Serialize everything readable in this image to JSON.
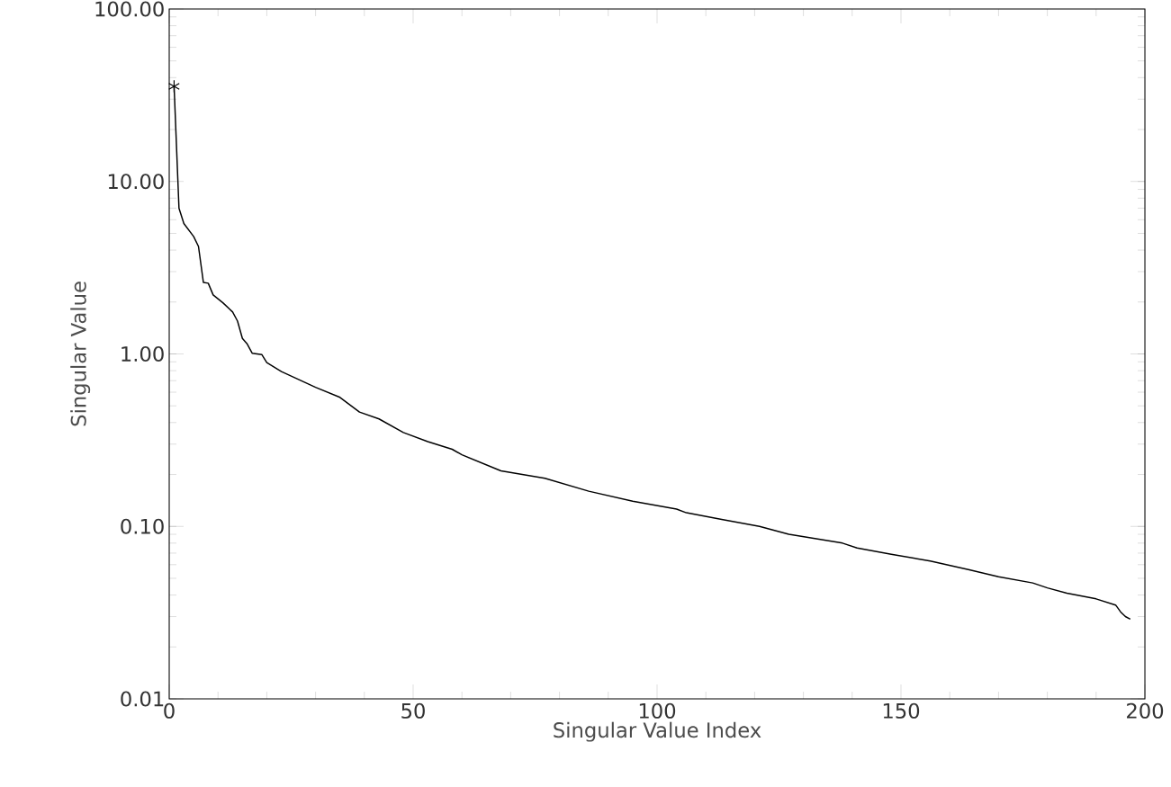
{
  "chart_data": {
    "type": "line",
    "xlabel": "Singular Value Index",
    "ylabel": "Singular Value",
    "log": "y",
    "xlim": [
      0,
      200
    ],
    "xticks": [
      0,
      50,
      100,
      150,
      200
    ],
    "ylim": [
      0.01,
      100
    ],
    "yticks": [
      {
        "value": 0.01,
        "label": "0.01"
      },
      {
        "value": 0.1,
        "label": "0.10"
      },
      {
        "value": 1,
        "label": "1.00"
      },
      {
        "value": 10,
        "label": "10.00"
      },
      {
        "value": 100,
        "label": "100.00"
      }
    ],
    "grid": false,
    "series": [
      {
        "color": "#000000",
        "marker": "none",
        "line_style": "solid",
        "x": [
          1,
          2,
          3,
          5,
          6,
          7,
          8,
          9,
          11,
          13,
          14,
          15,
          16,
          17,
          19,
          20,
          23,
          30,
          35,
          39,
          43,
          48,
          53,
          58,
          60,
          68,
          77,
          86,
          95,
          104,
          106,
          113,
          121,
          127,
          138,
          141,
          148,
          156,
          164,
          170,
          177,
          180,
          184,
          190,
          194,
          195,
          196,
          197
        ],
        "values": [
          35.6,
          7.0,
          5.7,
          4.8,
          4.2,
          2.6,
          2.57,
          2.2,
          1.98,
          1.75,
          1.55,
          1.23,
          1.14,
          1.01,
          0.99,
          0.89,
          0.79,
          0.64,
          0.56,
          0.46,
          0.42,
          0.35,
          0.31,
          0.28,
          0.26,
          0.21,
          0.19,
          0.16,
          0.14,
          0.126,
          0.12,
          0.11,
          0.1,
          0.09,
          0.08,
          0.075,
          0.069,
          0.063,
          0.056,
          0.051,
          0.047,
          0.044,
          0.041,
          0.038,
          0.035,
          0.032,
          0.03,
          0.029
        ]
      },
      {
        "type": "scatter",
        "color": "#000000",
        "marker": "cross",
        "x": [
          1
        ],
        "values": [
          35.6
        ]
      }
    ]
  }
}
